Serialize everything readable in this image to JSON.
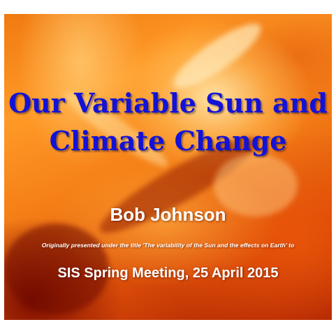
{
  "slide": {
    "title_line1": "Our Variable Sun and",
    "title_line2": "Climate Change",
    "author": "Bob Johnson",
    "note": "Originally presented under the title 'The variability of the Sun and the effects on Earth' to",
    "meeting": "SIS Spring Meeting, 25 April 2015"
  },
  "colors": {
    "title": "#1212d8",
    "text": "#ffffff",
    "background_primary": "#f07a12",
    "background_dark": "#a81e02"
  }
}
